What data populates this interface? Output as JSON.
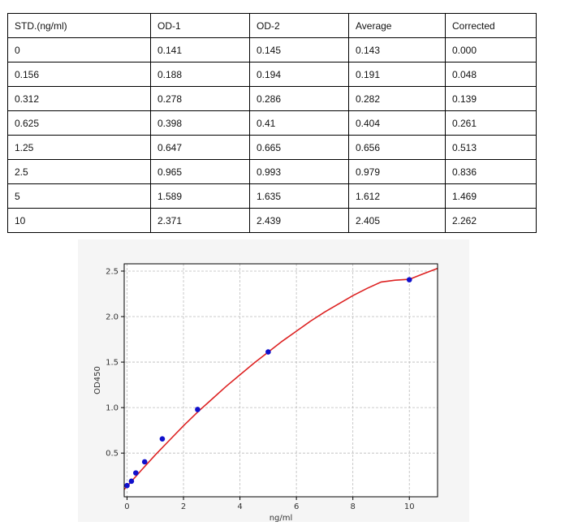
{
  "table": {
    "headers": [
      "STD.(ng/ml)",
      "OD-1",
      "OD-2",
      "Average",
      "Corrected"
    ],
    "rows": [
      [
        "0",
        "0.141",
        "0.145",
        "0.143",
        "0.000"
      ],
      [
        "0.156",
        "0.188",
        "0.194",
        "0.191",
        "0.048"
      ],
      [
        "0.312",
        "0.278",
        "0.286",
        "0.282",
        "0.139"
      ],
      [
        "0.625",
        "0.398",
        "0.41",
        "0.404",
        "0.261"
      ],
      [
        "1.25",
        "0.647",
        "0.665",
        "0.656",
        "0.513"
      ],
      [
        "2.5",
        "0.965",
        "0.993",
        "0.979",
        "0.836"
      ],
      [
        "5",
        "1.589",
        "1.635",
        "1.612",
        "1.469"
      ],
      [
        "10",
        "2.371",
        "2.439",
        "2.405",
        "2.262"
      ]
    ]
  },
  "chart_data": {
    "type": "scatter",
    "xlabel": "ng/ml",
    "ylabel": "OD450",
    "xlim": [
      -0.1,
      11
    ],
    "ylim": [
      0.02,
      2.58
    ],
    "xticks": [
      "0",
      "2",
      "4",
      "6",
      "8",
      "10"
    ],
    "yticks": [
      "0.5",
      "1.0",
      "1.5",
      "2.0",
      "2.5"
    ],
    "grid": true,
    "points": {
      "x": [
        0,
        0.156,
        0.312,
        0.625,
        1.25,
        2.5,
        5,
        10
      ],
      "y": [
        0.143,
        0.191,
        0.282,
        0.404,
        0.656,
        0.979,
        1.612,
        2.405
      ]
    },
    "fit_curve": {
      "x": [
        -0.1,
        0,
        0.5,
        1,
        1.5,
        2,
        2.5,
        3,
        3.5,
        4,
        4.5,
        5,
        5.5,
        6,
        6.5,
        7,
        7.5,
        8,
        8.5,
        9,
        9.5,
        10,
        10.5,
        11
      ],
      "y": [
        0.1,
        0.135,
        0.31,
        0.48,
        0.64,
        0.8,
        0.95,
        1.09,
        1.23,
        1.36,
        1.49,
        1.61,
        1.73,
        1.84,
        1.95,
        2.05,
        2.14,
        2.23,
        2.31,
        2.38,
        2.4,
        2.41,
        2.47,
        2.53
      ]
    },
    "colors": {
      "points": "#1010cc",
      "curve": "#dd2222",
      "grid": "#bbbbbb"
    }
  }
}
